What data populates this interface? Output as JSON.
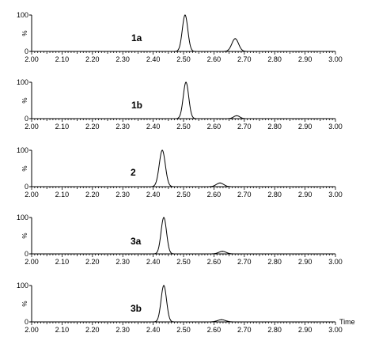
{
  "chart_data": {
    "type": "line",
    "shared_xlim": [
      2.0,
      3.0
    ],
    "xlabel": "Time",
    "x_tick_labels": [
      "2.00",
      "2.10",
      "2.20",
      "2.30",
      "2.40",
      "2.50",
      "2.60",
      "2.70",
      "2.80",
      "2.90",
      "3.00"
    ],
    "panels": [
      {
        "label": "1a",
        "ylabel": "%",
        "ylim": [
          0,
          100
        ],
        "y_tick_labels": [
          "100",
          "0"
        ],
        "peaks": [
          {
            "center": 2.505,
            "height": 100,
            "width": 0.009
          },
          {
            "center": 2.67,
            "height": 35,
            "width": 0.011
          }
        ]
      },
      {
        "label": "1b",
        "ylabel": "%",
        "ylim": [
          0,
          100
        ],
        "y_tick_labels": [
          "100",
          "0"
        ],
        "peaks": [
          {
            "center": 2.508,
            "height": 100,
            "width": 0.009
          },
          {
            "center": 2.675,
            "height": 8,
            "width": 0.01
          }
        ]
      },
      {
        "label": "2",
        "ylabel": "%",
        "ylim": [
          0,
          100
        ],
        "y_tick_labels": [
          "100",
          "0"
        ],
        "peaks": [
          {
            "center": 2.43,
            "height": 100,
            "width": 0.01
          },
          {
            "center": 2.62,
            "height": 10,
            "width": 0.012
          }
        ]
      },
      {
        "label": "3a",
        "ylabel": "%",
        "ylim": [
          0,
          100
        ],
        "y_tick_labels": [
          "100",
          "0"
        ],
        "peaks": [
          {
            "center": 2.435,
            "height": 100,
            "width": 0.009
          },
          {
            "center": 2.628,
            "height": 7,
            "width": 0.012
          }
        ]
      },
      {
        "label": "3b",
        "ylabel": "%",
        "ylim": [
          0,
          100
        ],
        "y_tick_labels": [
          "100",
          "0"
        ],
        "peaks": [
          {
            "center": 2.435,
            "height": 100,
            "width": 0.009
          },
          {
            "center": 2.625,
            "height": 6,
            "width": 0.013
          }
        ]
      }
    ]
  }
}
